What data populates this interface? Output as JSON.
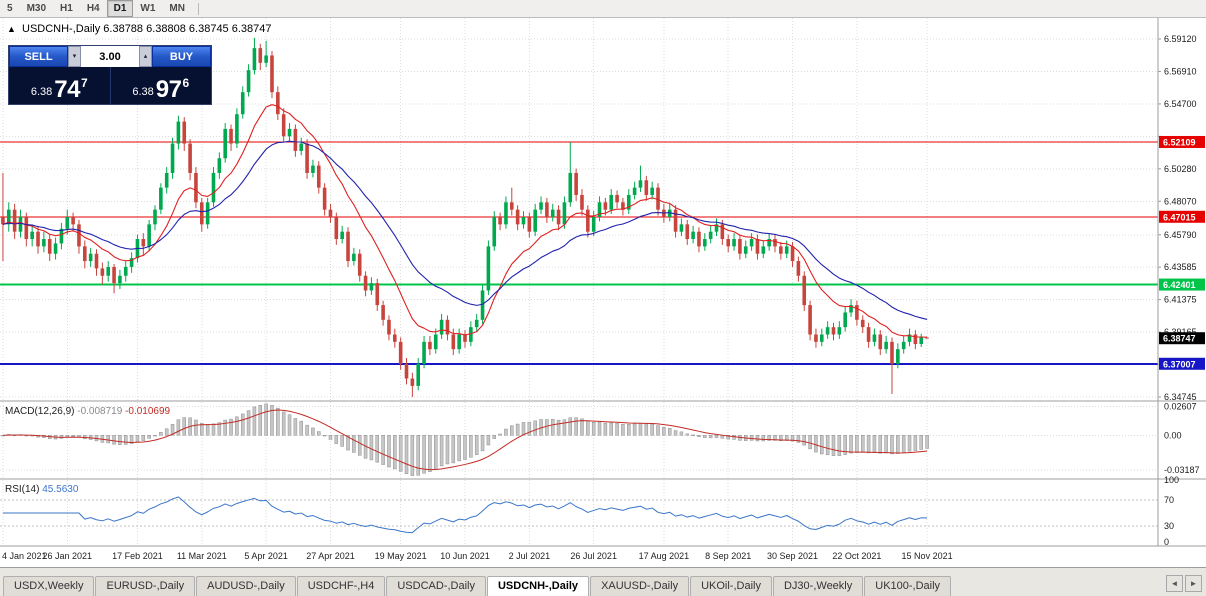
{
  "toolbar": {
    "periods": [
      {
        "label": "5",
        "active": false
      },
      {
        "label": "M30",
        "active": false
      },
      {
        "label": "H1",
        "active": false
      },
      {
        "label": "H4",
        "active": false
      },
      {
        "label": "D1",
        "active": true
      },
      {
        "label": "W1",
        "active": false
      },
      {
        "label": "MN",
        "active": false
      }
    ]
  },
  "chart": {
    "symbol_header": {
      "title": "USDCNH-,Daily",
      "open": "6.38788",
      "high": "6.38808",
      "low": "6.38745",
      "close": "6.38747"
    },
    "one_click": {
      "collapse_icon": "▲",
      "sell_label": "SELL",
      "buy_label": "BUY",
      "volume": "3.00",
      "volume_down_icon": "▾",
      "volume_up_icon": "▴",
      "sell_price": {
        "small": "6.38",
        "big": "74",
        "sup": "7"
      },
      "buy_price": {
        "small": "6.38",
        "big": "97",
        "sup": "6"
      }
    }
  },
  "chart_data": {
    "type": "candlestick",
    "symbol": "USDCNH-,Daily",
    "colors": {
      "up": "#00A94F",
      "down": "#C8453E",
      "grid": "#DCDCDC"
    },
    "price_scale": {
      "top": 6.6055,
      "bottom": 6.3454
    },
    "price_ticks": [
      {
        "v": 6.5912,
        "t": "6.59120"
      },
      {
        "v": 6.5691,
        "t": "6.56910"
      },
      {
        "v": 6.547,
        "t": "6.54700"
      },
      {
        "v": 6.5249,
        "t": ""
      },
      {
        "v": 6.5028,
        "t": "6.50280"
      },
      {
        "v": 6.4807,
        "t": "6.48070"
      },
      {
        "v": 6.4579,
        "t": "6.45790"
      },
      {
        "v": 6.43585,
        "t": "6.43585"
      },
      {
        "v": 6.41375,
        "t": "6.41375"
      },
      {
        "v": 6.39165,
        "t": "6.39165"
      },
      {
        "v": 6.36955,
        "t": ""
      },
      {
        "v": 6.34745,
        "t": "6.34745"
      }
    ],
    "hlines": [
      {
        "v": 6.52109,
        "t": "6.52109",
        "color": "#E60000",
        "w": 1
      },
      {
        "v": 6.47015,
        "t": "6.47015",
        "color": "#E60000",
        "w": 1
      },
      {
        "v": 6.42401,
        "t": "6.42401",
        "color": "#00C44A",
        "w": 2
      },
      {
        "v": 6.37007,
        "t": "6.37007",
        "color": "#1616C8",
        "w": 2
      }
    ],
    "current_price": {
      "v": 6.38747,
      "t": "6.38747",
      "bg": "#000000"
    },
    "overlays": [
      {
        "name": "ma-fast-line",
        "type": "ema",
        "period": 12,
        "color": "#E02020"
      },
      {
        "name": "ma-slow-line",
        "type": "ema",
        "period": 26,
        "color": "#2222AC"
      }
    ],
    "x_labels": [
      {
        "t": "4 Jan 2021",
        "i": 0
      },
      {
        "t": "26 Jan 2021",
        "i": 11
      },
      {
        "t": "17 Feb 2021",
        "i": 23
      },
      {
        "t": "11 Mar 2021",
        "i": 34
      },
      {
        "t": "5 Apr 2021",
        "i": 45
      },
      {
        "t": "27 Apr 2021",
        "i": 56
      },
      {
        "t": "19 May 2021",
        "i": 68
      },
      {
        "t": "10 Jun 2021",
        "i": 79
      },
      {
        "t": "2 Jul 2021",
        "i": 90
      },
      {
        "t": "26 Jul 2021",
        "i": 101
      },
      {
        "t": "17 Aug 2021",
        "i": 113
      },
      {
        "t": "8 Sep 2021",
        "i": 124
      },
      {
        "t": "30 Sep 2021",
        "i": 135
      },
      {
        "t": "22 Oct 2021",
        "i": 146
      },
      {
        "t": "15 Nov 2021",
        "i": 158
      }
    ],
    "candles": [
      [
        6.47,
        6.5,
        6.44,
        6.465
      ],
      [
        6.465,
        6.48,
        6.46,
        6.475
      ],
      [
        6.475,
        6.479,
        6.455,
        6.46
      ],
      [
        6.46,
        6.475,
        6.456,
        6.47
      ],
      [
        6.47,
        6.473,
        6.45,
        6.455
      ],
      [
        6.455,
        6.465,
        6.45,
        6.46
      ],
      [
        6.46,
        6.464,
        6.445,
        6.45
      ],
      [
        6.45,
        6.46,
        6.446,
        6.455
      ],
      [
        6.455,
        6.458,
        6.44,
        6.445
      ],
      [
        6.445,
        6.456,
        6.441,
        6.452
      ],
      [
        6.452,
        6.466,
        6.448,
        6.462
      ],
      [
        6.462,
        6.475,
        6.458,
        6.47
      ],
      [
        6.47,
        6.473,
        6.46,
        6.465
      ],
      [
        6.465,
        6.468,
        6.445,
        6.45
      ],
      [
        6.45,
        6.454,
        6.435,
        6.44
      ],
      [
        6.44,
        6.449,
        6.436,
        6.445
      ],
      [
        6.445,
        6.448,
        6.43,
        6.435
      ],
      [
        6.435,
        6.439,
        6.424,
        6.43
      ],
      [
        6.43,
        6.44,
        6.426,
        6.436
      ],
      [
        6.436,
        6.438,
        6.418,
        6.425
      ],
      [
        6.425,
        6.434,
        6.421,
        6.43
      ],
      [
        6.43,
        6.44,
        6.426,
        6.436
      ],
      [
        6.436,
        6.446,
        6.432,
        6.442
      ],
      [
        6.442,
        6.458,
        6.439,
        6.455
      ],
      [
        6.455,
        6.459,
        6.444,
        6.45
      ],
      [
        6.45,
        6.468,
        6.447,
        6.465
      ],
      [
        6.465,
        6.478,
        6.461,
        6.475
      ],
      [
        6.475,
        6.493,
        6.472,
        6.49
      ],
      [
        6.49,
        6.504,
        6.486,
        6.5
      ],
      [
        6.5,
        6.524,
        6.496,
        6.52
      ],
      [
        6.52,
        6.539,
        6.516,
        6.535
      ],
      [
        6.535,
        6.538,
        6.515,
        6.52
      ],
      [
        6.52,
        6.523,
        6.495,
        6.5
      ],
      [
        6.5,
        6.504,
        6.476,
        6.48
      ],
      [
        6.48,
        6.483,
        6.46,
        6.465
      ],
      [
        6.465,
        6.483,
        6.462,
        6.48
      ],
      [
        6.48,
        6.504,
        6.477,
        6.5
      ],
      [
        6.5,
        6.514,
        6.496,
        6.51
      ],
      [
        6.51,
        6.534,
        6.507,
        6.53
      ],
      [
        6.53,
        6.533,
        6.515,
        6.52
      ],
      [
        6.52,
        6.544,
        6.517,
        6.54
      ],
      [
        6.54,
        6.559,
        6.537,
        6.555
      ],
      [
        6.555,
        6.574,
        6.552,
        6.57
      ],
      [
        6.57,
        6.592,
        6.567,
        6.585
      ],
      [
        6.585,
        6.588,
        6.57,
        6.575
      ],
      [
        6.575,
        6.59,
        6.572,
        6.58
      ],
      [
        6.58,
        6.583,
        6.551,
        6.555
      ],
      [
        6.555,
        6.559,
        6.536,
        6.54
      ],
      [
        6.54,
        6.544,
        6.521,
        6.525
      ],
      [
        6.525,
        6.534,
        6.522,
        6.53
      ],
      [
        6.53,
        6.533,
        6.511,
        6.515
      ],
      [
        6.515,
        6.524,
        6.512,
        6.52
      ],
      [
        6.52,
        6.523,
        6.496,
        6.5
      ],
      [
        6.5,
        6.509,
        6.497,
        6.505
      ],
      [
        6.505,
        6.508,
        6.486,
        6.49
      ],
      [
        6.49,
        6.493,
        6.471,
        6.475
      ],
      [
        6.475,
        6.479,
        6.466,
        6.47
      ],
      [
        6.47,
        6.473,
        6.451,
        6.455
      ],
      [
        6.455,
        6.464,
        6.452,
        6.46
      ],
      [
        6.46,
        6.463,
        6.436,
        6.44
      ],
      [
        6.44,
        6.449,
        6.437,
        6.445
      ],
      [
        6.445,
        6.448,
        6.426,
        6.43
      ],
      [
        6.43,
        6.433,
        6.416,
        6.42
      ],
      [
        6.42,
        6.429,
        6.417,
        6.425
      ],
      [
        6.425,
        6.428,
        6.406,
        6.41
      ],
      [
        6.41,
        6.413,
        6.396,
        6.4
      ],
      [
        6.4,
        6.403,
        6.386,
        6.39
      ],
      [
        6.39,
        6.394,
        6.381,
        6.385
      ],
      [
        6.385,
        6.388,
        6.366,
        6.37
      ],
      [
        6.37,
        6.374,
        6.356,
        6.36
      ],
      [
        6.36,
        6.364,
        6.3475,
        6.355
      ],
      [
        6.355,
        6.374,
        6.352,
        6.37
      ],
      [
        6.37,
        6.389,
        6.367,
        6.385
      ],
      [
        6.385,
        6.389,
        6.376,
        6.38
      ],
      [
        6.38,
        6.394,
        6.377,
        6.39
      ],
      [
        6.39,
        6.404,
        6.387,
        6.4
      ],
      [
        6.4,
        6.403,
        6.386,
        6.39
      ],
      [
        6.39,
        6.394,
        6.376,
        6.38
      ],
      [
        6.38,
        6.394,
        6.377,
        6.39
      ],
      [
        6.39,
        6.393,
        6.381,
        6.385
      ],
      [
        6.385,
        6.399,
        6.382,
        6.395
      ],
      [
        6.395,
        6.404,
        6.392,
        6.4
      ],
      [
        6.4,
        6.424,
        6.397,
        6.42
      ],
      [
        6.42,
        6.454,
        6.417,
        6.45
      ],
      [
        6.45,
        6.474,
        6.447,
        6.47
      ],
      [
        6.47,
        6.473,
        6.461,
        6.465
      ],
      [
        6.465,
        6.484,
        6.462,
        6.48
      ],
      [
        6.48,
        6.49,
        6.471,
        6.475
      ],
      [
        6.475,
        6.478,
        6.461,
        6.465
      ],
      [
        6.465,
        6.474,
        6.462,
        6.47
      ],
      [
        6.47,
        6.473,
        6.456,
        6.46
      ],
      [
        6.46,
        6.479,
        6.457,
        6.475
      ],
      [
        6.475,
        6.484,
        6.472,
        6.48
      ],
      [
        6.48,
        6.483,
        6.466,
        6.47
      ],
      [
        6.47,
        6.479,
        6.467,
        6.475
      ],
      [
        6.475,
        6.478,
        6.461,
        6.465
      ],
      [
        6.465,
        6.484,
        6.462,
        6.48
      ],
      [
        6.48,
        6.521,
        6.477,
        6.5
      ],
      [
        6.5,
        6.503,
        6.481,
        6.485
      ],
      [
        6.485,
        6.489,
        6.471,
        6.475
      ],
      [
        6.475,
        6.478,
        6.456,
        6.46
      ],
      [
        6.46,
        6.474,
        6.457,
        6.47
      ],
      [
        6.47,
        6.484,
        6.467,
        6.48
      ],
      [
        6.48,
        6.483,
        6.471,
        6.475
      ],
      [
        6.475,
        6.489,
        6.472,
        6.485
      ],
      [
        6.485,
        6.488,
        6.476,
        6.48
      ],
      [
        6.48,
        6.483,
        6.471,
        6.475
      ],
      [
        6.475,
        6.489,
        6.472,
        6.485
      ],
      [
        6.485,
        6.494,
        6.482,
        6.49
      ],
      [
        6.49,
        6.505,
        6.487,
        6.495
      ],
      [
        6.495,
        6.498,
        6.481,
        6.485
      ],
      [
        6.485,
        6.494,
        6.482,
        6.49
      ],
      [
        6.49,
        6.493,
        6.471,
        6.475
      ],
      [
        6.475,
        6.479,
        6.466,
        6.47
      ],
      [
        6.47,
        6.479,
        6.467,
        6.475
      ],
      [
        6.475,
        6.478,
        6.456,
        6.46
      ],
      [
        6.46,
        6.469,
        6.457,
        6.465
      ],
      [
        6.465,
        6.468,
        6.451,
        6.455
      ],
      [
        6.455,
        6.464,
        6.452,
        6.46
      ],
      [
        6.46,
        6.463,
        6.446,
        6.45
      ],
      [
        6.45,
        6.459,
        6.447,
        6.455
      ],
      [
        6.455,
        6.464,
        6.452,
        6.46
      ],
      [
        6.46,
        6.469,
        6.457,
        6.465
      ],
      [
        6.465,
        6.468,
        6.451,
        6.455
      ],
      [
        6.455,
        6.458,
        6.446,
        6.45
      ],
      [
        6.45,
        6.459,
        6.447,
        6.455
      ],
      [
        6.455,
        6.458,
        6.441,
        6.445
      ],
      [
        6.445,
        6.454,
        6.442,
        6.45
      ],
      [
        6.45,
        6.459,
        6.447,
        6.455
      ],
      [
        6.455,
        6.458,
        6.441,
        6.445
      ],
      [
        6.445,
        6.454,
        6.442,
        6.45
      ],
      [
        6.45,
        6.459,
        6.447,
        6.455
      ],
      [
        6.455,
        6.458,
        6.446,
        6.45
      ],
      [
        6.45,
        6.453,
        6.441,
        6.445
      ],
      [
        6.445,
        6.454,
        6.442,
        6.45
      ],
      [
        6.45,
        6.453,
        6.436,
        6.44
      ],
      [
        6.44,
        6.443,
        6.426,
        6.43
      ],
      [
        6.43,
        6.433,
        6.406,
        6.41
      ],
      [
        6.41,
        6.413,
        6.386,
        6.39
      ],
      [
        6.39,
        6.394,
        6.381,
        6.385
      ],
      [
        6.385,
        6.394,
        6.382,
        6.39
      ],
      [
        6.39,
        6.399,
        6.387,
        6.395
      ],
      [
        6.395,
        6.398,
        6.386,
        6.39
      ],
      [
        6.39,
        6.399,
        6.387,
        6.395
      ],
      [
        6.395,
        6.409,
        6.392,
        6.405
      ],
      [
        6.405,
        6.414,
        6.402,
        6.41
      ],
      [
        6.41,
        6.413,
        6.396,
        6.4
      ],
      [
        6.4,
        6.403,
        6.391,
        6.395
      ],
      [
        6.395,
        6.398,
        6.381,
        6.385
      ],
      [
        6.385,
        6.394,
        6.382,
        6.39
      ],
      [
        6.39,
        6.393,
        6.376,
        6.38
      ],
      [
        6.38,
        6.389,
        6.377,
        6.385
      ],
      [
        6.385,
        6.388,
        6.3495,
        6.37
      ],
      [
        6.37,
        6.384,
        6.367,
        6.38
      ],
      [
        6.38,
        6.389,
        6.377,
        6.385
      ],
      [
        6.385,
        6.394,
        6.382,
        6.39
      ],
      [
        6.39,
        6.393,
        6.38,
        6.3835
      ],
      [
        6.3835,
        6.3905,
        6.3815,
        6.388
      ],
      [
        6.3879,
        6.3881,
        6.3875,
        6.3875
      ]
    ],
    "macd": {
      "title": "MACD(12,26,9)",
      "value_main": "-0.008719",
      "value_signal": "-0.010699",
      "fast": 12,
      "slow": 26,
      "signal": 9,
      "axis": [
        {
          "v": 0.02607,
          "t": "0.02607"
        },
        {
          "v": 0,
          "t": "0.00"
        },
        {
          "v": -0.03187,
          "t": "-0.03187"
        }
      ],
      "hist_color": "#C6C6C6",
      "hist_stroke": "#909090",
      "signal_color": "#C22B25"
    },
    "rsi": {
      "title": "RSI(14)",
      "value": "45.5630",
      "period": 14,
      "levels": [
        70,
        30
      ],
      "axis": [
        {
          "v": 100,
          "t": "100"
        },
        {
          "v": 70,
          "t": "70"
        },
        {
          "v": 30,
          "t": "30"
        },
        {
          "v": 0,
          "t": "0"
        }
      ],
      "color": "#3A76C8"
    }
  },
  "tabs": {
    "items": [
      {
        "label": "USDX,Weekly",
        "active": false
      },
      {
        "label": "EURUSD-,Daily",
        "active": false
      },
      {
        "label": "AUDUSD-,Daily",
        "active": false
      },
      {
        "label": "USDCHF-,H4",
        "active": false
      },
      {
        "label": "USDCAD-,Daily",
        "active": false
      },
      {
        "label": "USDCNH-,Daily",
        "active": true
      },
      {
        "label": "XAUUSD-,Daily",
        "active": false
      },
      {
        "label": "UKOil-,Daily",
        "active": false
      },
      {
        "label": "DJ30-,Weekly",
        "active": false
      },
      {
        "label": "UK100-,Daily",
        "active": false
      }
    ],
    "scroll_left": "◄",
    "scroll_right": "►"
  }
}
